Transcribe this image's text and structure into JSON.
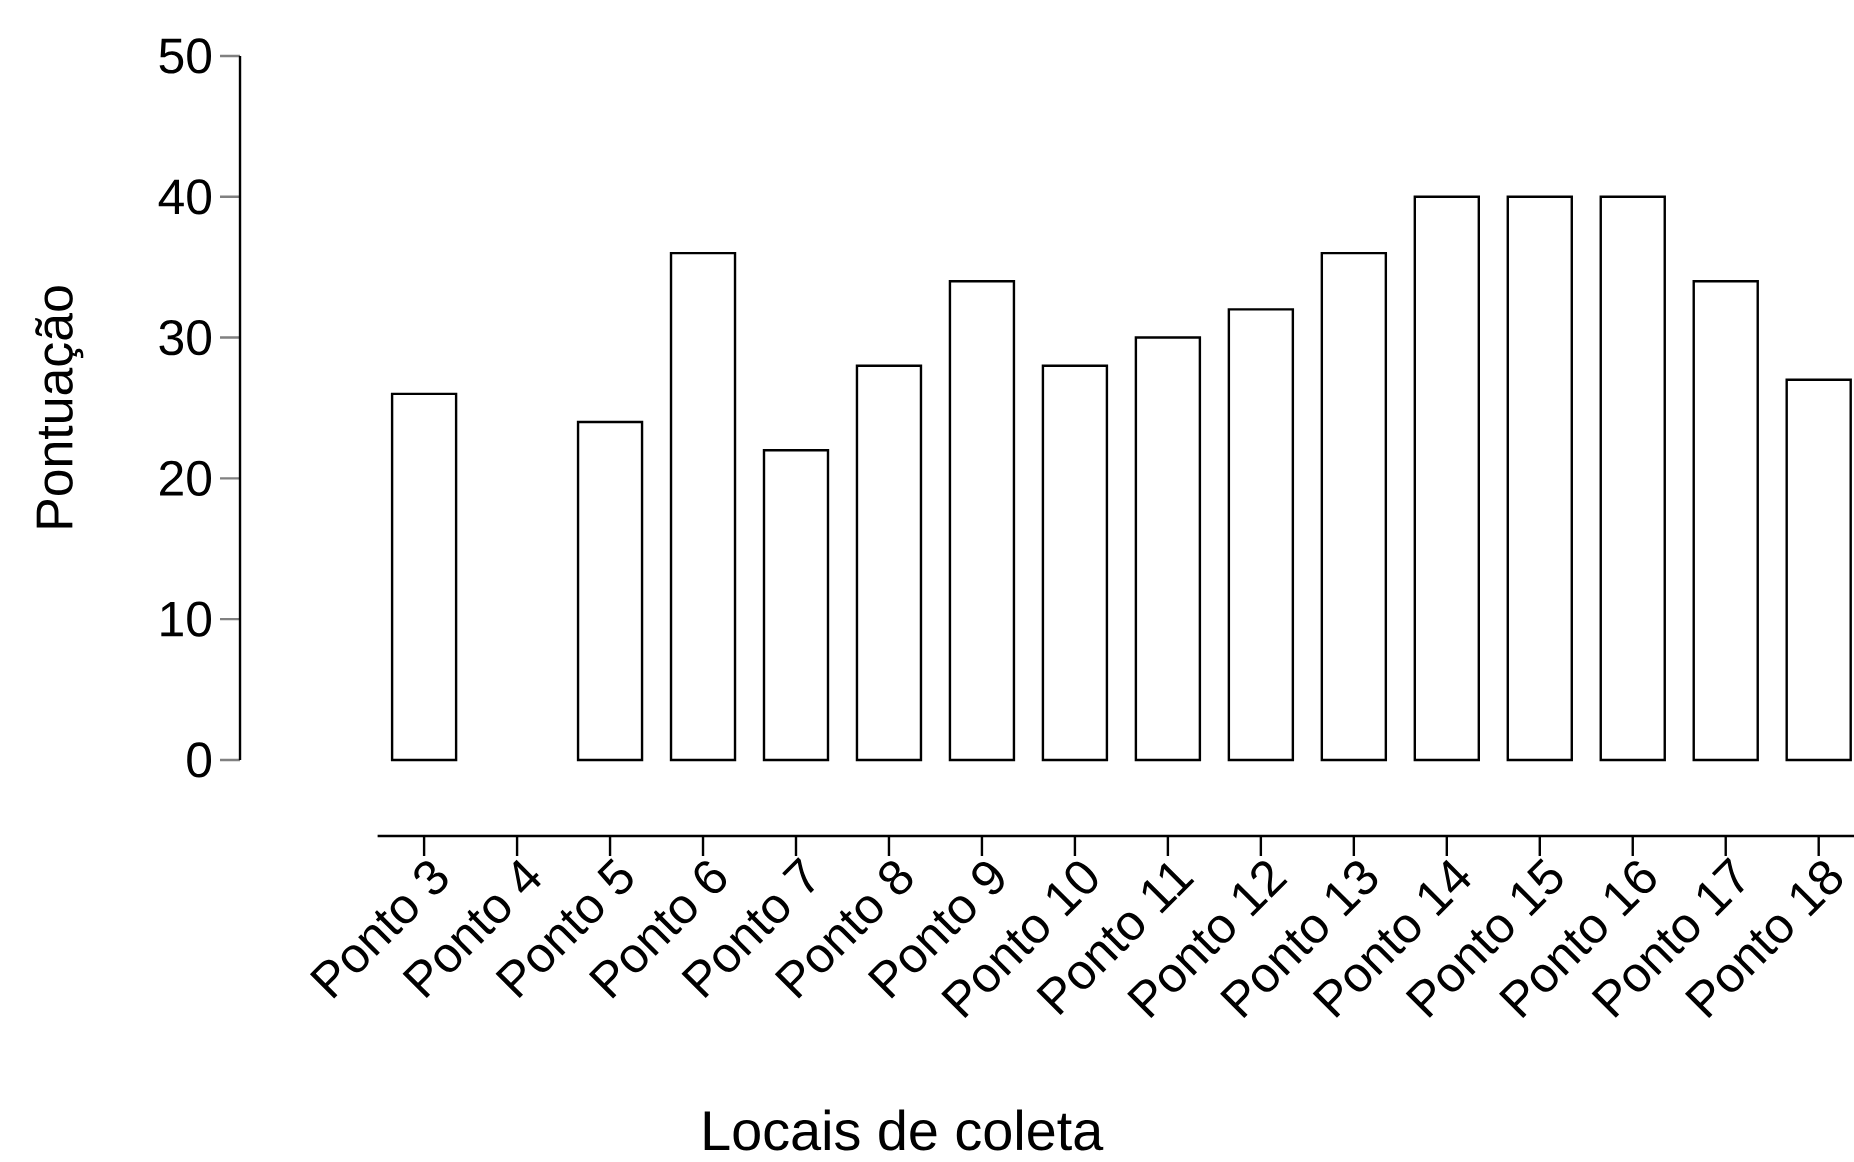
{
  "chart_data": {
    "type": "bar",
    "xlabel": "Locais de coleta",
    "ylabel": "Pontuação",
    "categories": [
      "Ponto 3",
      "Ponto 4",
      "Ponto 5",
      "Ponto 6",
      "Ponto 7",
      "Ponto 8",
      "Ponto 9",
      "Ponto 10",
      "Ponto 11",
      "Ponto 12",
      "Ponto 13",
      "Ponto 14",
      "Ponto 15",
      "Ponto 16",
      "Ponto 17",
      "Ponto 18"
    ],
    "values": [
      26,
      null,
      24,
      36,
      22,
      28,
      34,
      28,
      30,
      32,
      36,
      40,
      40,
      40,
      34,
      27
    ],
    "color": "#ffffff",
    "ylim": [
      0,
      50
    ],
    "yticks": [
      0,
      10,
      20,
      30,
      40,
      50
    ],
    "grid": false
  }
}
